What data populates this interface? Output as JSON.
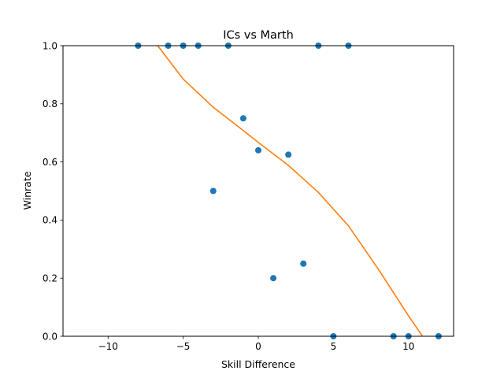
{
  "chart_data": {
    "type": "scatter",
    "title": "ICs vs Marth",
    "xlabel": "Skill Difference",
    "ylabel": "Winrate",
    "xlim": [
      -13,
      13
    ],
    "ylim": [
      0,
      1
    ],
    "xticks": [
      -10,
      -5,
      0,
      5,
      10
    ],
    "xtick_labels": [
      "−10",
      "−5",
      "0",
      "5",
      "10"
    ],
    "yticks": [
      0,
      0.2,
      0.4,
      0.6,
      0.8,
      1.0
    ],
    "ytick_labels": [
      "0.0",
      "0.2",
      "0.4",
      "0.6",
      "0.8",
      "1.0"
    ],
    "grid": false,
    "points": {
      "color": "#1f77b4",
      "x": [
        -8,
        -6,
        -5,
        -4,
        -2,
        4,
        6,
        -1,
        0,
        2,
        -3,
        1,
        3,
        5,
        9,
        10,
        12
      ],
      "y": [
        1.0,
        1.0,
        1.0,
        1.0,
        1.0,
        1.0,
        1.0,
        0.75,
        0.64,
        0.625,
        0.5,
        0.2,
        0.25,
        0.0,
        0.0,
        0.0,
        0.0
      ]
    },
    "fit_curve": {
      "color": "#ff7f0e",
      "x": [
        -6.7,
        -5,
        -3,
        -1,
        0,
        2,
        4,
        6,
        8,
        10,
        11.2
      ],
      "y": [
        1.0,
        0.885,
        0.788,
        0.708,
        0.667,
        0.588,
        0.495,
        0.38,
        0.23,
        0.07,
        -0.02
      ]
    }
  }
}
